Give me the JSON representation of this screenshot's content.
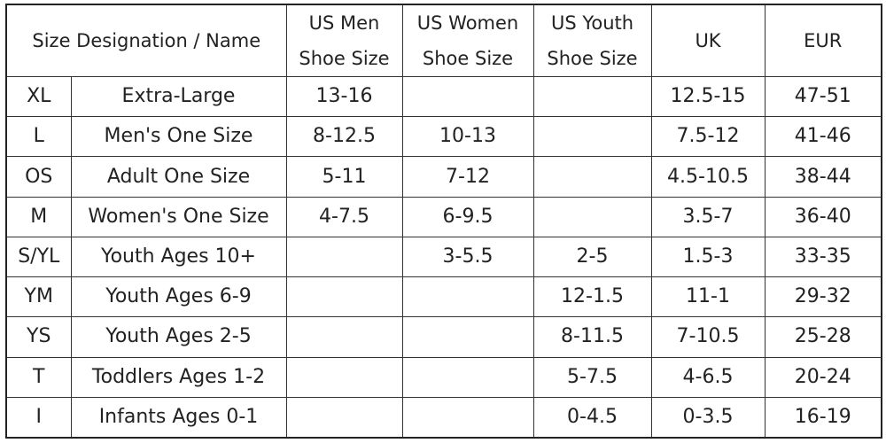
{
  "table": {
    "headers": {
      "designation": "Size Designation / Name",
      "us_men": [
        "US Men",
        "Shoe Size"
      ],
      "us_women": [
        "US Women",
        "Shoe Size"
      ],
      "us_youth": [
        "US Youth",
        "Shoe Size"
      ],
      "uk": "UK",
      "eur": "EUR"
    },
    "rows": [
      {
        "code": "XL",
        "name": "Extra-Large",
        "us_men": "13-16",
        "us_women": "",
        "us_youth": "",
        "uk": "12.5-15",
        "eur": "47-51"
      },
      {
        "code": "L",
        "name": "Men's One Size",
        "us_men": "8-12.5",
        "us_women": "10-13",
        "us_youth": "",
        "uk": "7.5-12",
        "eur": "41-46"
      },
      {
        "code": "OS",
        "name": "Adult One Size",
        "us_men": "5-11",
        "us_women": "7-12",
        "us_youth": "",
        "uk": "4.5-10.5",
        "eur": "38-44"
      },
      {
        "code": "M",
        "name": "Women's One Size",
        "us_men": "4-7.5",
        "us_women": "6-9.5",
        "us_youth": "",
        "uk": "3.5-7",
        "eur": "36-40"
      },
      {
        "code": "S/YL",
        "name": "Youth Ages 10+",
        "us_men": "",
        "us_women": "3-5.5",
        "us_youth": "2-5",
        "uk": "1.5-3",
        "eur": "33-35"
      },
      {
        "code": "YM",
        "name": "Youth Ages 6-9",
        "us_men": "",
        "us_women": "",
        "us_youth": "12-1.5",
        "uk": "11-1",
        "eur": "29-32"
      },
      {
        "code": "YS",
        "name": "Youth Ages 2-5",
        "us_men": "",
        "us_women": "",
        "us_youth": "8-11.5",
        "uk": "7-10.5",
        "eur": "25-28"
      },
      {
        "code": "T",
        "name": "Toddlers Ages 1-2",
        "us_men": "",
        "us_women": "",
        "us_youth": "5-7.5",
        "uk": "4-6.5",
        "eur": "20-24"
      },
      {
        "code": "I",
        "name": "Infants Ages 0-1",
        "us_men": "",
        "us_women": "",
        "us_youth": "0-4.5",
        "uk": "0-3.5",
        "eur": "16-19"
      }
    ]
  }
}
